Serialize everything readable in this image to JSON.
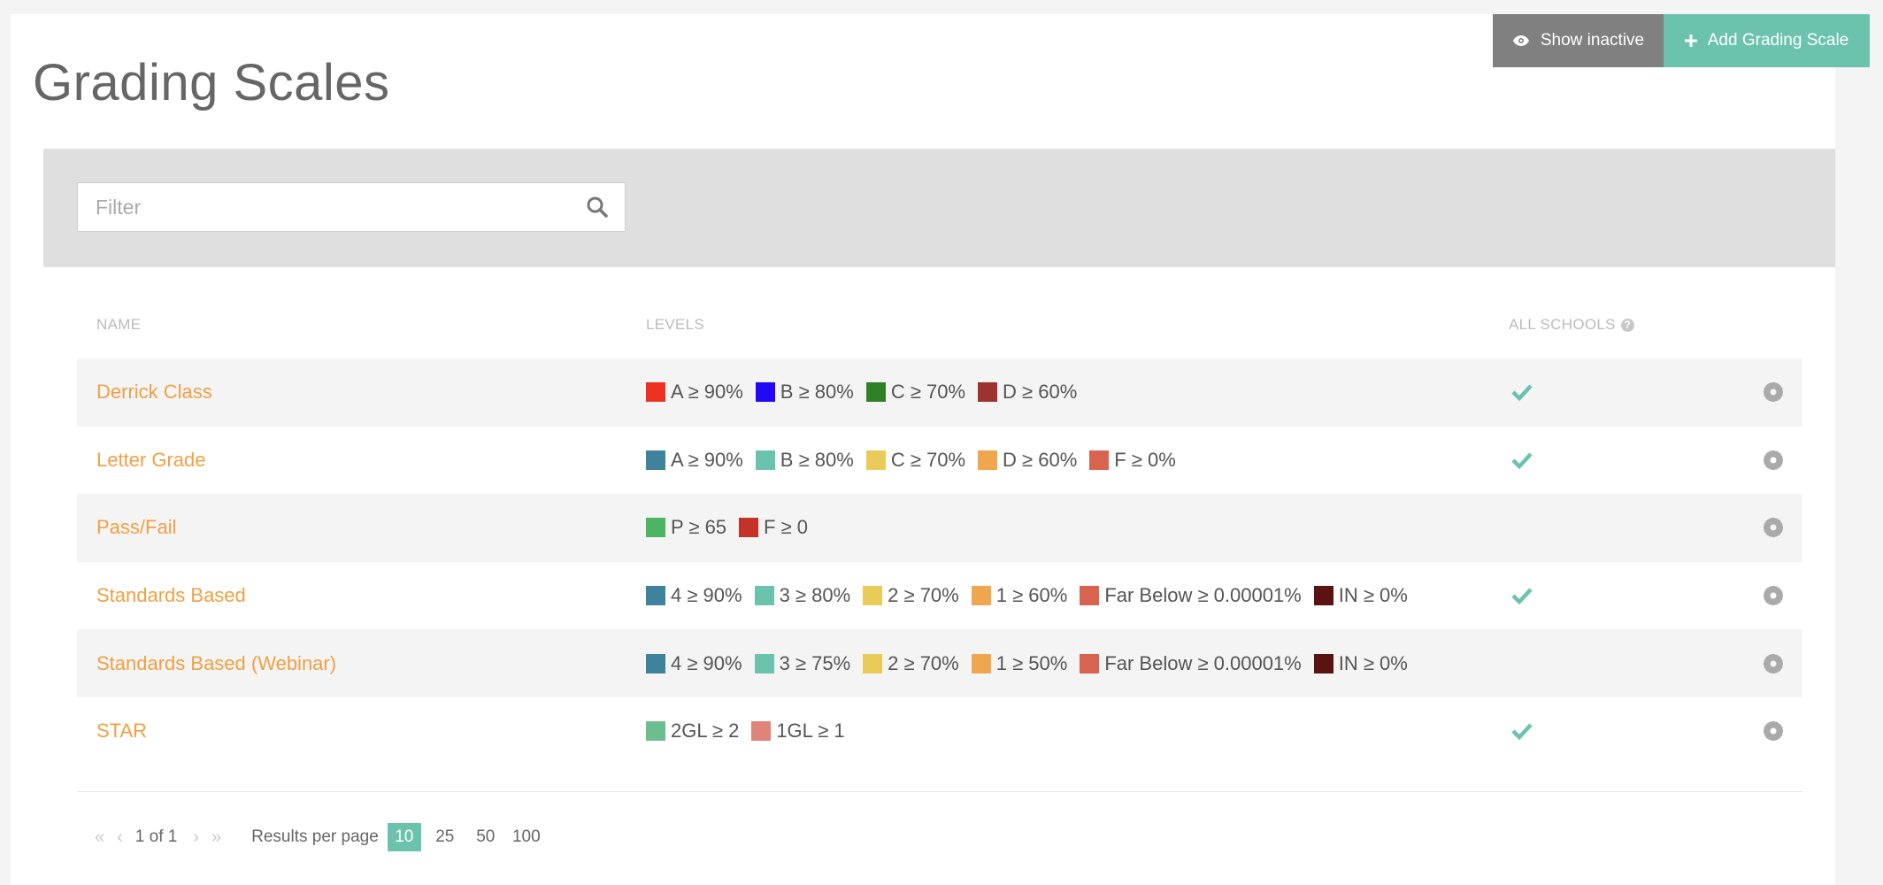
{
  "page": {
    "title": "Grading Scales"
  },
  "toolbar": {
    "show_inactive_label": "Show inactive",
    "add_label": "Add Grading Scale"
  },
  "filter": {
    "placeholder": "Filter"
  },
  "table": {
    "headers": {
      "name": "NAME",
      "levels": "LEVELS",
      "all_schools": "ALL SCHOOLS"
    },
    "rows": [
      {
        "name": "Derrick Class",
        "all_schools": true,
        "levels": [
          {
            "label": "A ≥ 90%",
            "color": "#ec3323"
          },
          {
            "label": "B ≥ 80%",
            "color": "#2109f5"
          },
          {
            "label": "C ≥ 70%",
            "color": "#2e8124"
          },
          {
            "label": "D ≥ 60%",
            "color": "#9b3430"
          }
        ]
      },
      {
        "name": "Letter Grade",
        "all_schools": true,
        "levels": [
          {
            "label": "A ≥ 90%",
            "color": "#3f829d"
          },
          {
            "label": "B ≥ 80%",
            "color": "#6cc3ad"
          },
          {
            "label": "C ≥ 70%",
            "color": "#e9cb5a"
          },
          {
            "label": "D ≥ 60%",
            "color": "#eea64f"
          },
          {
            "label": "F ≥ 0%",
            "color": "#d8644f"
          }
        ]
      },
      {
        "name": "Pass/Fail",
        "all_schools": false,
        "levels": [
          {
            "label": "P ≥ 65",
            "color": "#4db463"
          },
          {
            "label": "F ≥ 0",
            "color": "#c53328"
          }
        ]
      },
      {
        "name": "Standards Based",
        "all_schools": true,
        "levels": [
          {
            "label": "4 ≥ 90%",
            "color": "#3f829d"
          },
          {
            "label": "3 ≥ 80%",
            "color": "#6cc3ad"
          },
          {
            "label": "2 ≥ 70%",
            "color": "#e9cb5a"
          },
          {
            "label": "1 ≥ 60%",
            "color": "#eea64f"
          },
          {
            "label": "Far Below ≥ 0.00001%",
            "color": "#d8644f"
          },
          {
            "label": "IN ≥ 0%",
            "color": "#5a1310"
          }
        ]
      },
      {
        "name": "Standards Based (Webinar)",
        "all_schools": false,
        "levels": [
          {
            "label": "4 ≥ 90%",
            "color": "#3f829d"
          },
          {
            "label": "3 ≥ 75%",
            "color": "#6cc3ad"
          },
          {
            "label": "2 ≥ 70%",
            "color": "#e9cb5a"
          },
          {
            "label": "1 ≥ 50%",
            "color": "#eea64f"
          },
          {
            "label": "Far Below ≥ 0.00001%",
            "color": "#d8644f"
          },
          {
            "label": "IN ≥ 0%",
            "color": "#5a1310"
          }
        ]
      },
      {
        "name": "STAR",
        "all_schools": true,
        "levels": [
          {
            "label": "2GL ≥ 2",
            "color": "#6dbe8e"
          },
          {
            "label": "1GL ≥ 1",
            "color": "#e0837a"
          }
        ]
      }
    ]
  },
  "pagination": {
    "page_info": "1 of 1",
    "results_per_page_label": "Results per page",
    "options": [
      "10",
      "25",
      "50",
      "100"
    ],
    "selected": "10"
  },
  "colors": {
    "accent": "#6cc3ad",
    "link": "#f0a043",
    "inactive_button": "#808080"
  }
}
